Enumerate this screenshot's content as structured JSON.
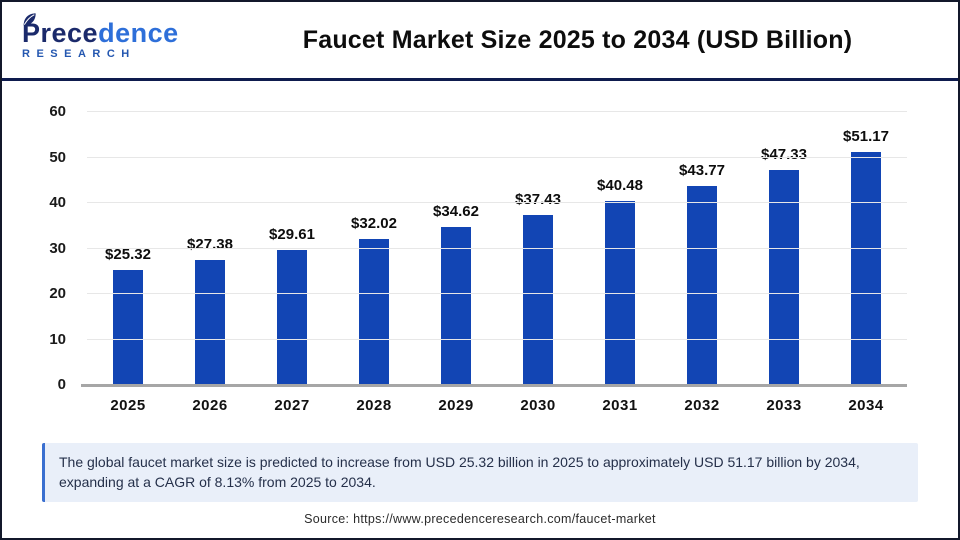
{
  "header": {
    "logo": {
      "brand_part1": "Prece",
      "brand_part2": "dence",
      "subtitle": "RESEARCH"
    },
    "title": "Faucet Market Size 2025 to 2034 (USD Billion)"
  },
  "chart_data": {
    "type": "bar",
    "categories": [
      "2025",
      "2026",
      "2027",
      "2028",
      "2029",
      "2030",
      "2031",
      "2032",
      "2033",
      "2034"
    ],
    "values": [
      25.32,
      27.38,
      29.61,
      32.02,
      34.62,
      37.43,
      40.48,
      43.77,
      47.33,
      51.17
    ],
    "label_prefix": "$",
    "title": "Faucet Market Size 2025 to 2034 (USD Billion)",
    "xlabel": "",
    "ylabel": "",
    "ylim": [
      0,
      60
    ],
    "ytick_step": 10,
    "grid": true,
    "legend": false
  },
  "footer": {
    "summary": "The global faucet market size is predicted to increase from USD 25.32 billion in 2025 to approximately USD 51.17 billion by 2034, expanding at a CAGR of 8.13% from 2025 to 2034.",
    "source": "Source: https://www.precedenceresearch.com/faucet-market"
  },
  "colors": {
    "bar": "#1245b4",
    "grid": "#e7e7e7",
    "axis_line": "#a6a6a6",
    "header_divider": "#0e1b4e",
    "outer_border": "#13182b",
    "logo_dark": "#1b2a6b",
    "logo_light": "#2e6fd9",
    "logo_subtitle": "#2457b0",
    "summary_bg": "#e9eff9",
    "summary_accent": "#3a6fd0",
    "summary_text": "#25304a"
  }
}
